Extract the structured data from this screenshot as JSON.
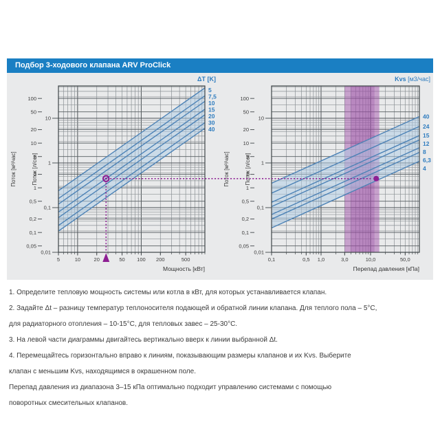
{
  "header": {
    "title": "Подбор 3-ходового клапана ARV ProClick"
  },
  "colors": {
    "header_bg": "#1a7fc3",
    "panel_bg": "#e9eaeb",
    "line_blue": "#4c82b6",
    "label_blue": "#2e7cbf",
    "fill_blue": "rgba(173,203,229,0.5)",
    "band_purple": "rgba(168,93,176,0.52)",
    "band_core_purple": "rgba(134,44,145,0.22)",
    "marker_magenta": "#8d1f93",
    "grid_minor": "#8a9094",
    "grid_major": "#4d5357",
    "grid_mid": "#565c60",
    "plot_border": "#3f4548"
  },
  "chart_data": [
    {
      "type": "line",
      "name": "power_flow",
      "title_parts": [
        {
          "t": "ΔT",
          "b": 1
        },
        {
          "t": " [K]",
          "b": 1
        }
      ],
      "xlabel": "Мощность [кВт]",
      "x_range": [
        5,
        1000
      ],
      "x_ticks": [
        {
          "v": 5,
          "l": "5"
        },
        {
          "v": 10,
          "l": "10"
        },
        {
          "v": 20,
          "l": "20"
        },
        {
          "v": 50,
          "l": "50"
        },
        {
          "v": 100,
          "l": "100"
        },
        {
          "v": 200,
          "l": "200"
        },
        {
          "v": 500,
          "l": "500"
        }
      ],
      "y_outer_label": "Поток [м³/час]",
      "y_outer_ticks": [
        {
          "v": 100,
          "l": "100"
        },
        {
          "v": 50,
          "l": "50"
        },
        {
          "v": 20,
          "l": "20"
        },
        {
          "v": 10,
          "l": "10"
        },
        {
          "v": 5,
          "l": "5"
        },
        {
          "v": 2,
          "l": "2"
        },
        {
          "v": 1,
          "l": "1"
        },
        {
          "v": 0.5,
          "l": "0,5"
        },
        {
          "v": 0.2,
          "l": "0,2"
        },
        {
          "v": 0.1,
          "l": "0,1"
        },
        {
          "v": 0.05,
          "l": "0,05"
        }
      ],
      "y_inner_label": "Поток [л/сек]",
      "y_inner_ticks": [
        {
          "v": 10,
          "l": "10"
        },
        {
          "v": 1,
          "l": "1"
        },
        {
          "v": 0.1,
          "l": "0,1"
        },
        {
          "v": 0.01,
          "l": "0,01"
        }
      ],
      "y_range_lps": [
        0.01,
        52.9
      ],
      "series": [
        {
          "label": "5",
          "dt": 5
        },
        {
          "label": "7,5",
          "dt": 7.5
        },
        {
          "label": "10",
          "dt": 10
        },
        {
          "label": "15",
          "dt": 15
        },
        {
          "label": "20",
          "dt": 20
        },
        {
          "label": "30",
          "dt": 30
        },
        {
          "label": "40",
          "dt": 40
        }
      ]
    },
    {
      "type": "line",
      "name": "kvs_flow",
      "title_parts": [
        {
          "t": "Kvs",
          "b": 1
        },
        {
          "t": " [м3/час]",
          "b": 0
        }
      ],
      "xlabel": "Перепад давления [кПа]",
      "x_range": [
        0.1,
        96.8
      ],
      "x_ticks": [
        {
          "v": 0.1,
          "l": "0,1"
        },
        {
          "v": 0.5,
          "l": "0,5"
        },
        {
          "v": 1,
          "l": "1,0"
        },
        {
          "v": 3,
          "l": "3,0"
        },
        {
          "v": 10,
          "l": "10,0"
        },
        {
          "v": 50,
          "l": "50,0"
        }
      ],
      "y_outer_label": "Поток [м³/час]",
      "y_outer_ticks": [
        {
          "v": 100,
          "l": "100"
        },
        {
          "v": 50,
          "l": "50"
        },
        {
          "v": 20,
          "l": "20"
        },
        {
          "v": 10,
          "l": "10"
        },
        {
          "v": 5,
          "l": "5"
        },
        {
          "v": 2,
          "l": "2"
        },
        {
          "v": 1,
          "l": "1"
        },
        {
          "v": 0.5,
          "l": "0,5"
        },
        {
          "v": 0.2,
          "l": "0,2"
        },
        {
          "v": 0.1,
          "l": "0,1"
        },
        {
          "v": 0.05,
          "l": "0,05"
        }
      ],
      "y_inner_label": "Поток [л/сек]",
      "y_inner_ticks": [
        {
          "v": 10,
          "l": "10"
        },
        {
          "v": 1,
          "l": "1"
        },
        {
          "v": 0.1,
          "l": "0,1"
        },
        {
          "v": 0.01,
          "l": "0,01"
        }
      ],
      "y_range_lps": [
        0.01,
        52.9
      ],
      "series": [
        {
          "label": "40",
          "kvs": 40
        },
        {
          "label": "24",
          "kvs": 24
        },
        {
          "label": "15",
          "kvs": 15
        },
        {
          "label": "12",
          "kvs": 12
        },
        {
          "label": "8",
          "kvs": 8
        },
        {
          "label": "6,3",
          "kvs": 6.3
        },
        {
          "label": "4",
          "kvs": 4
        }
      ],
      "band": {
        "from_kpa": 3,
        "to_kpa": 15
      }
    }
  ],
  "example": {
    "power_kw": 28,
    "dt": 15,
    "flow_m3h": 1.6,
    "pressure_drop_kpa": 13,
    "kvs": 4
  },
  "instructions": {
    "lines": [
      "1. Определите тепловую мощность системы или котла в кВт, для которых устанавливается клапан.",
      "2. Задайте Δt – разницу температур теплоносителя подающей и обратной линии клапана. Для теплого пола – 5°C,",
      "для радиаторного отопления – 10-15°C, для тепловых завес – 25-30°C.",
      "3. На левой части диаграммы двигайтесь вертикально вверх к линии выбранной Δt.",
      "4. Перемещайтесь горизонтально вправо к линиям, показывающим размеры клапанов и их Kvs. Выберите",
      "клапан с меньшим Kvs, находящимся в окрашенном поле.",
      "Перепад давления из диапазона 3–15 кПа оптимально подходит управлению системами с помощью",
      "поворотных смесительных клапанов."
    ]
  }
}
